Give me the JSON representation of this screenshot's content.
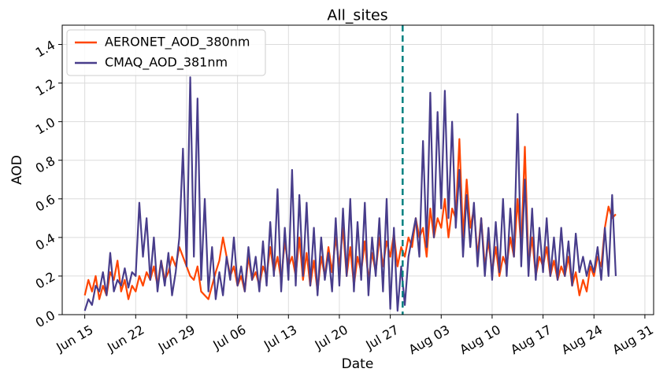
{
  "chart_data": {
    "type": "line",
    "title": "All_sites",
    "x_label": "Date",
    "y_label": "AOD",
    "x": [
      0,
      0.5,
      1,
      1.5,
      2,
      2.5,
      3,
      3.5,
      4,
      4.5,
      5,
      5.5,
      6,
      6.5,
      7,
      7.5,
      8,
      8.5,
      9,
      9.5,
      10,
      10.5,
      11,
      11.5,
      12,
      12.5,
      13,
      13.5,
      14,
      14.5,
      15,
      15.5,
      16,
      16.5,
      17,
      17.5,
      18,
      18.5,
      19,
      19.5,
      20,
      20.5,
      21,
      21.5,
      22,
      22.5,
      23,
      23.5,
      24,
      24.5,
      25,
      25.5,
      26,
      26.5,
      27,
      27.5,
      28,
      28.5,
      29,
      29.5,
      30,
      30.5,
      31,
      31.5,
      32,
      32.5,
      33,
      33.5,
      34,
      34.5,
      35,
      35.5,
      36,
      36.5,
      37,
      37.5,
      38,
      38.5,
      39,
      39.5,
      40,
      40.5,
      41,
      41.5,
      42,
      42.5,
      43,
      43.5,
      44,
      44.5,
      45,
      45.5,
      46,
      46.5,
      47,
      47.5,
      48,
      48.5,
      49,
      49.5,
      50,
      50.5,
      51,
      51.5,
      52,
      52.5,
      53,
      53.5,
      54,
      54.5,
      55,
      55.5,
      56,
      56.5,
      57,
      57.5,
      58,
      58.5,
      59,
      59.5,
      60,
      60.5,
      61,
      61.5,
      62,
      62.5,
      63,
      63.5,
      64,
      64.5,
      65,
      65.5,
      66,
      66.5,
      67,
      67.5,
      68,
      68.5,
      69,
      69.5,
      70,
      70.5,
      71,
      71.5,
      72,
      72.5,
      73
    ],
    "series": [
      {
        "name": "AERONET_AOD_380nm",
        "color": "#ff4500",
        "values": [
          0.1,
          0.18,
          0.12,
          0.2,
          0.08,
          0.15,
          0.1,
          0.22,
          0.18,
          0.28,
          0.12,
          0.18,
          0.08,
          0.15,
          0.12,
          0.2,
          0.15,
          0.22,
          0.18,
          0.25,
          0.15,
          0.28,
          0.18,
          0.22,
          0.3,
          0.25,
          0.35,
          0.3,
          0.25,
          0.2,
          0.18,
          0.25,
          0.12,
          0.1,
          0.08,
          0.15,
          0.22,
          0.28,
          0.4,
          0.3,
          0.2,
          0.25,
          0.15,
          0.2,
          0.12,
          0.3,
          0.18,
          0.22,
          0.15,
          0.25,
          0.2,
          0.35,
          0.22,
          0.3,
          0.18,
          0.38,
          0.25,
          0.3,
          0.2,
          0.4,
          0.18,
          0.32,
          0.15,
          0.28,
          0.12,
          0.3,
          0.2,
          0.35,
          0.22,
          0.4,
          0.25,
          0.45,
          0.2,
          0.35,
          0.15,
          0.3,
          0.22,
          0.38,
          0.18,
          0.32,
          0.22,
          0.4,
          0.25,
          0.38,
          0.3,
          0.42,
          0.25,
          0.35,
          0.3,
          0.4,
          0.35,
          0.5,
          0.4,
          0.45,
          0.3,
          0.55,
          0.4,
          0.5,
          0.45,
          0.6,
          0.4,
          0.55,
          0.5,
          0.91,
          0.4,
          0.7,
          0.45,
          0.55,
          0.3,
          0.5,
          0.25,
          0.38,
          0.22,
          0.35,
          0.2,
          0.3,
          0.25,
          0.4,
          0.3,
          0.6,
          0.35,
          0.87,
          0.25,
          0.4,
          0.2,
          0.3,
          0.25,
          0.35,
          0.2,
          0.28,
          0.18,
          0.25,
          0.2,
          0.3,
          0.15,
          0.22,
          0.1,
          0.18,
          0.12,
          0.25,
          0.2,
          0.3,
          0.25,
          0.45,
          0.56,
          0.5,
          0.52
        ]
      },
      {
        "name": "CMAQ_AOD_381nm",
        "color": "#483d8b",
        "values": [
          0.02,
          0.08,
          0.05,
          0.15,
          0.12,
          0.22,
          0.1,
          0.32,
          0.12,
          0.18,
          0.15,
          0.24,
          0.14,
          0.22,
          0.2,
          0.58,
          0.3,
          0.5,
          0.18,
          0.4,
          0.12,
          0.28,
          0.15,
          0.32,
          0.1,
          0.22,
          0.4,
          0.86,
          0.25,
          1.23,
          0.3,
          1.12,
          0.18,
          0.6,
          0.12,
          0.35,
          0.08,
          0.22,
          0.1,
          0.3,
          0.18,
          0.4,
          0.15,
          0.25,
          0.12,
          0.35,
          0.18,
          0.3,
          0.12,
          0.38,
          0.15,
          0.48,
          0.2,
          0.65,
          0.12,
          0.45,
          0.18,
          0.75,
          0.15,
          0.62,
          0.2,
          0.58,
          0.15,
          0.45,
          0.1,
          0.4,
          0.18,
          0.32,
          0.12,
          0.5,
          0.15,
          0.55,
          0.2,
          0.6,
          0.12,
          0.48,
          0.18,
          0.58,
          0.1,
          0.4,
          0.2,
          0.5,
          0.12,
          0.6,
          0.03,
          0.45,
          0.02,
          0.25,
          0.05,
          0.3,
          0.4,
          0.5,
          0.3,
          0.9,
          0.35,
          1.15,
          0.4,
          1.05,
          0.55,
          1.16,
          0.5,
          1.0,
          0.45,
          0.75,
          0.3,
          0.62,
          0.35,
          0.58,
          0.25,
          0.5,
          0.2,
          0.45,
          0.18,
          0.48,
          0.22,
          0.6,
          0.2,
          0.55,
          0.3,
          1.04,
          0.25,
          0.7,
          0.2,
          0.55,
          0.18,
          0.45,
          0.22,
          0.5,
          0.2,
          0.4,
          0.18,
          0.45,
          0.2,
          0.38,
          0.15,
          0.42,
          0.22,
          0.3,
          0.2,
          0.28,
          0.22,
          0.35,
          0.18,
          0.45,
          0.2,
          0.62,
          0.2
        ]
      }
    ],
    "xlim": [
      -3.1,
      78.2
    ],
    "xticks": [
      {
        "value": 0,
        "label": "Jun 15"
      },
      {
        "value": 7,
        "label": "Jun 22"
      },
      {
        "value": 14,
        "label": "Jun 29"
      },
      {
        "value": 21,
        "label": "Jul 06"
      },
      {
        "value": 28,
        "label": "Jul 13"
      },
      {
        "value": 35,
        "label": "Jul 20"
      },
      {
        "value": 42,
        "label": "Jul 27"
      },
      {
        "value": 49,
        "label": "Aug 03"
      },
      {
        "value": 56,
        "label": "Aug 10"
      },
      {
        "value": 63,
        "label": "Aug 17"
      },
      {
        "value": 70,
        "label": "Aug 24"
      },
      {
        "value": 77,
        "label": "Aug 31"
      }
    ],
    "ylim": [
      0,
      1.5
    ],
    "yticks": [
      {
        "value": 0,
        "label": "0.0"
      },
      {
        "value": 0.2,
        "label": "0.2"
      },
      {
        "value": 0.4,
        "label": "0.4"
      },
      {
        "value": 0.6,
        "label": "0.6"
      },
      {
        "value": 0.8,
        "label": "0.8"
      },
      {
        "value": 1.0,
        "label": "1.0"
      },
      {
        "value": 1.2,
        "label": "1.2"
      },
      {
        "value": 1.4,
        "label": "1.4"
      }
    ],
    "grid": true,
    "legend": "upper-left",
    "vline": {
      "x": 43.7,
      "color": "#008080"
    }
  }
}
